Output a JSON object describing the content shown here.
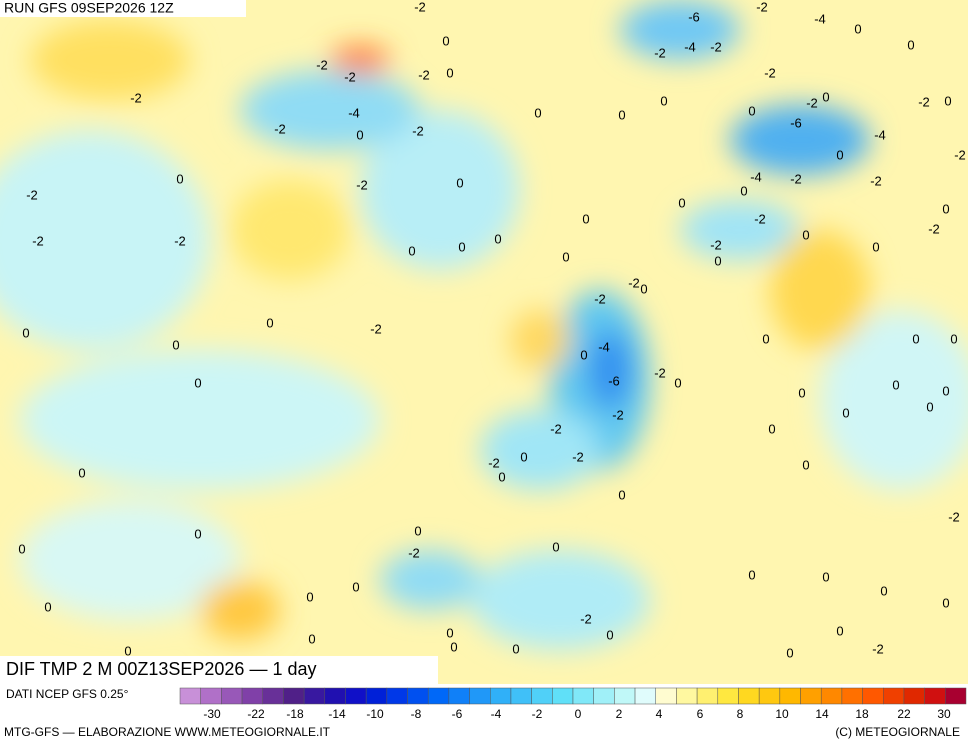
{
  "header": {
    "run": "RUN GFS 09SEP2026 12Z"
  },
  "title": "DIF TMP 2 M 00Z13SEP2026 — 1 day",
  "source": "DATI NCEP GFS 0.25°",
  "footer": {
    "left": "MTG-GFS — ELABORAZIONE WWW.METEOGIORNALE.IT",
    "right": "(C) METEOGIORNALE"
  },
  "contour_labels": [
    -2,
    -6,
    -2,
    -4,
    0,
    0,
    0,
    -2,
    -4,
    -2,
    -2,
    -2,
    -2,
    0,
    -2,
    -2,
    0,
    -2,
    0,
    -2,
    0,
    0,
    -4,
    0,
    0,
    -2,
    0,
    -2,
    -6,
    -4,
    0,
    -2,
    0,
    -2,
    0,
    -4,
    -2,
    -2,
    0,
    -2,
    0,
    0,
    0,
    -2,
    -2,
    -2,
    -2,
    0,
    0,
    0,
    -2,
    0,
    0,
    0,
    0,
    -2,
    0,
    -2,
    0,
    -2,
    0,
    0,
    0,
    0,
    0,
    -4,
    0,
    -2,
    -6,
    0,
    0,
    0,
    0,
    0,
    0,
    -2,
    0,
    -2,
    0,
    0,
    -2,
    -2,
    0,
    0,
    0,
    0,
    -2,
    0,
    0,
    0,
    -2,
    0,
    0,
    0,
    0,
    0,
    0,
    0,
    -2,
    0,
    0,
    0,
    0,
    -2,
    0,
    0,
    0,
    0,
    0
  ],
  "colorbar": {
    "colors": [
      "#c890d8",
      "#b070c8",
      "#9858b8",
      "#8040a8",
      "#683098",
      "#502088",
      "#3818a0",
      "#2010b0",
      "#1010c8",
      "#0020d8",
      "#0038e8",
      "#0050f0",
      "#0068f8",
      "#1080f8",
      "#2098f8",
      "#30b0f8",
      "#40c0f8",
      "#50d0f8",
      "#60e0f8",
      "#80e8f8",
      "#a0f0f8",
      "#c0f8f8",
      "#e0fcfc",
      "#fffcd0",
      "#fff8a0",
      "#fff070",
      "#ffe840",
      "#ffd820",
      "#ffc810",
      "#ffb800",
      "#ffa000",
      "#ff8800",
      "#ff7000",
      "#ff5800",
      "#f04000",
      "#e02800",
      "#d01010",
      "#a80030"
    ],
    "ticks": [
      -30,
      -22,
      -18,
      -14,
      -10,
      -8,
      -6,
      -4,
      -2,
      0,
      2,
      4,
      6,
      8,
      10,
      14,
      18,
      22,
      30
    ]
  }
}
